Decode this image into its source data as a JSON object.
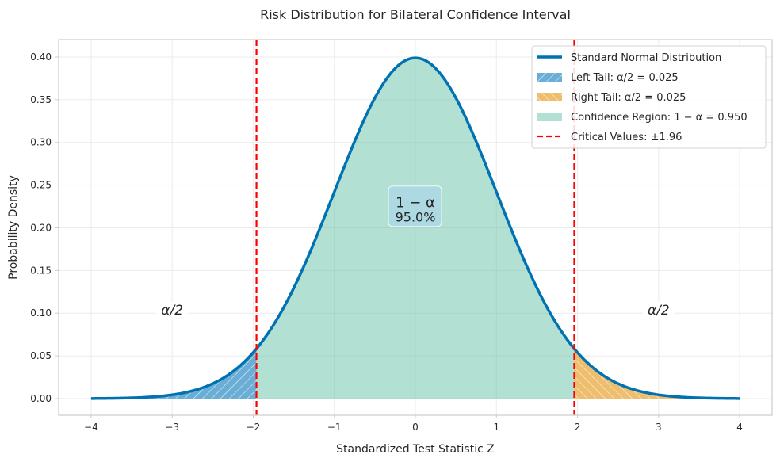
{
  "chart_data": {
    "type": "area",
    "title": "Risk Distribution for Bilateral Confidence Interval",
    "xlabel": "Standardized Test Statistic Z",
    "ylabel": "Probability Density",
    "xlim": [
      -4.4,
      4.4
    ],
    "ylim": [
      -0.0195,
      0.4204
    ],
    "xticks": [
      -4,
      -3,
      -2,
      -1,
      0,
      1,
      2,
      3,
      4
    ],
    "xtick_labels": [
      "−4",
      "−3",
      "−2",
      "−1",
      "0",
      "1",
      "2",
      "3",
      "4"
    ],
    "yticks": [
      0,
      0.05,
      0.1,
      0.15,
      0.2,
      0.25,
      0.3,
      0.35,
      0.4
    ],
    "ytick_labels": [
      "0.00",
      "0.05",
      "0.10",
      "0.15",
      "0.20",
      "0.25",
      "0.30",
      "0.35",
      "0.40"
    ],
    "grid": true,
    "legend_placement": "top-right",
    "series": [
      {
        "name": "Standard Normal Distribution",
        "kind": "line",
        "function": "standard normal pdf",
        "x_range": [
          -4,
          4
        ],
        "color": "#0072b2"
      },
      {
        "name": "Left Tail: α/2 = 0.025",
        "kind": "fill",
        "x_range": [
          -4,
          -1.96
        ],
        "color": "#3c8fc4",
        "hatch": "/"
      },
      {
        "name": "Right Tail: α/2 = 0.025",
        "kind": "fill",
        "x_range": [
          1.96,
          4
        ],
        "color": "#e9a940",
        "hatch": "\\"
      },
      {
        "name": "Confidence Region: 1 − α = 0.950",
        "kind": "fill",
        "x_range": [
          -1.96,
          1.96
        ],
        "color": "#66c2a5"
      },
      {
        "name": "Critical Values: ±1.96",
        "kind": "vline",
        "x": [
          -1.96,
          1.96
        ],
        "color": "#ff0000"
      }
    ],
    "annotations": [
      {
        "text": "α/2",
        "x": -3,
        "y": 0.1
      },
      {
        "text": "α/2",
        "x": 3,
        "y": 0.1
      },
      {
        "text": "1 − α",
        "text2": "95.0%",
        "x": 0,
        "y": 0.21
      }
    ]
  }
}
